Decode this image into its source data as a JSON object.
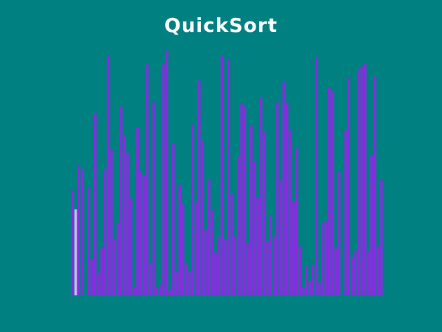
{
  "window": {
    "title": "QuickSort"
  },
  "colors": {
    "background": "#008080",
    "bar": "#8a2be2",
    "highlight": "#e0b0ff"
  },
  "visualizer": {
    "max_value": 350,
    "highlight_index": 1,
    "values": [
      150,
      123,
      185,
      181,
      0,
      155,
      52,
      260,
      32,
      67,
      181,
      343,
      208,
      81,
      104,
      270,
      228,
      204,
      139,
      12,
      240,
      177,
      171,
      330,
      45,
      276,
      12,
      15,
      330,
      350,
      8,
      217,
      34,
      158,
      130,
      46,
      35,
      244,
      133,
      307,
      220,
      93,
      165,
      122,
      61,
      84,
      343,
      80,
      338,
      145,
      84,
      198,
      274,
      270,
      75,
      242,
      191,
      140,
      283,
      235,
      77,
      114,
      84,
      276,
      164,
      305,
      274,
      236,
      134,
      212,
      70,
      12,
      43,
      20,
      44,
      341,
      18,
      104,
      105,
      297,
      292,
      67,
      178,
      0,
      236,
      311,
      54,
      64,
      323,
      327,
      331,
      63,
      200,
      313,
      70,
      165
    ]
  }
}
